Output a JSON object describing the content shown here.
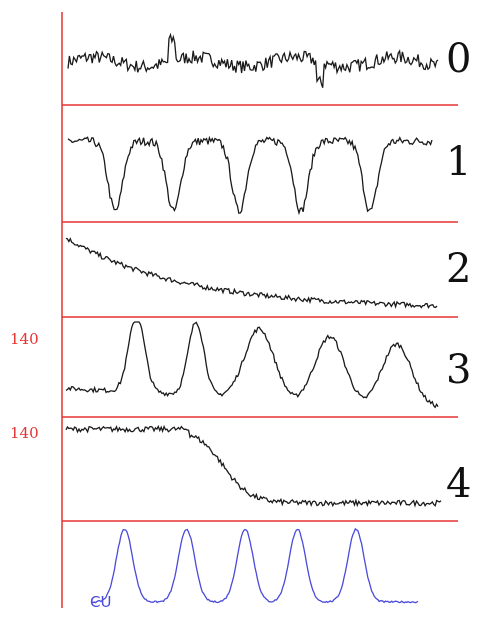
{
  "chart_data": {
    "type": "line",
    "title": "",
    "xlabel": "",
    "ylabel": "",
    "grid": false,
    "colors": {
      "axis": "#e53030",
      "trace": "#1a1a1a",
      "cu_trace": "#4a4adc"
    },
    "y_tick_labels": [
      {
        "panel": "3",
        "label": "140"
      },
      {
        "panel": "4",
        "label": "140"
      }
    ],
    "contraction_label": "CU",
    "series": [
      {
        "name": "0",
        "pattern": "flat-noisy",
        "contraction_peaks": [],
        "level_start": 0.55,
        "level_end": 0.55
      },
      {
        "name": "1",
        "pattern": "periodic-dips",
        "contraction_peaks": [
          0.13,
          0.29,
          0.47,
          0.64,
          0.83
        ],
        "level_start": 0.8,
        "level_end": 0.8
      },
      {
        "name": "2",
        "pattern": "gradual-decline",
        "contraction_peaks": [],
        "level_start": 0.95,
        "level_end": 0.08
      },
      {
        "name": "3",
        "pattern": "periodic-peaks",
        "contraction_peaks": [
          0.19,
          0.35,
          0.52,
          0.71,
          0.89
        ],
        "level_start": 0.7,
        "level_end": 0.1
      },
      {
        "name": "4",
        "pattern": "step-drop",
        "contraction_peaks": [],
        "level_start": 0.9,
        "level_end": 0.08
      },
      {
        "name": "CU",
        "pattern": "contractions",
        "contraction_peaks": [
          0.1,
          0.29,
          0.47,
          0.63,
          0.81
        ],
        "level_start": 0.05,
        "level_end": 0.05
      }
    ]
  }
}
